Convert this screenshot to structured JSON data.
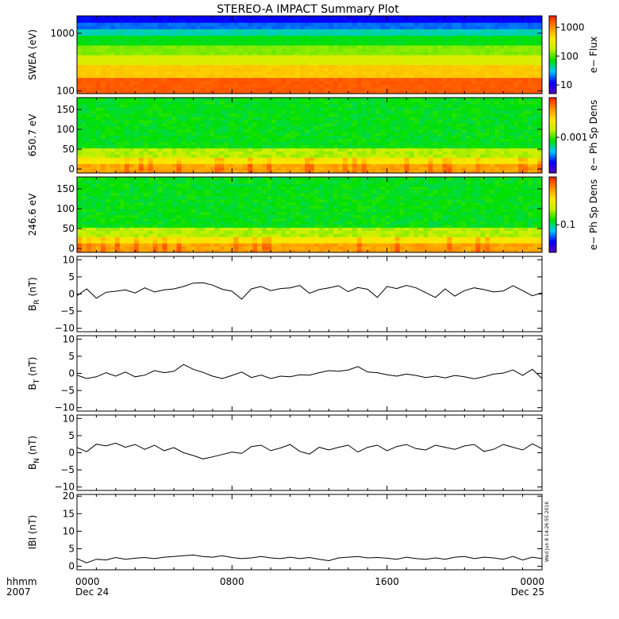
{
  "title": "STEREO-A IMPACT Summary Plot",
  "footer": {
    "hhmm_label": "hhmm",
    "year_label": "2007",
    "time_ticks": [
      "0000",
      "0800",
      "1600",
      "0000"
    ],
    "date_ticks": [
      "Dec 24",
      "",
      "",
      "Dec 25"
    ],
    "timestamp": "Wed Jun 8 14:26:55 2016"
  },
  "colors": {
    "line": "#000000",
    "colormap": [
      "#5a00b4",
      "#0000ff",
      "#00c8ff",
      "#00e000",
      "#c8f000",
      "#ffe600",
      "#ff8c00",
      "#ff1e00"
    ]
  },
  "chart_data": [
    {
      "type": "heatmap",
      "ylabel": "SWEA (eV)",
      "yscale": "log",
      "ylim": [
        90,
        2000
      ],
      "yticks": [
        {
          "v": 1000,
          "label": "1000"
        },
        {
          "v": 100,
          "label": "100"
        }
      ],
      "colorbar": {
        "label": "e− Flux",
        "scale": "log",
        "range": [
          5,
          2500
        ],
        "ticks": [
          {
            "v": 1000,
            "label": "1000"
          },
          {
            "v": 100,
            "label": "100"
          },
          {
            "v": 10,
            "label": "10"
          }
        ]
      },
      "profile": "energy"
    },
    {
      "type": "heatmap",
      "ylabel": "650.7 eV",
      "ylim": [
        -10,
        180
      ],
      "yticks": [
        {
          "v": 150,
          "label": "150"
        },
        {
          "v": 100,
          "label": "100"
        },
        {
          "v": 50,
          "label": "50"
        },
        {
          "v": 0,
          "label": "0"
        }
      ],
      "colorbar": {
        "label": "e− Ph Sp Dens",
        "scale": "log",
        "range": [
          0.0002,
          0.006
        ],
        "ticks": [
          {
            "v": 0.001,
            "label": "0.001"
          }
        ]
      },
      "profile": "pitch"
    },
    {
      "type": "heatmap",
      "ylabel": "246.6 eV",
      "ylim": [
        -10,
        180
      ],
      "yticks": [
        {
          "v": 150,
          "label": "150"
        },
        {
          "v": 100,
          "label": "100"
        },
        {
          "v": 50,
          "label": "50"
        },
        {
          "v": 0,
          "label": "0"
        }
      ],
      "colorbar": {
        "label": "e− Ph Sp Dens",
        "scale": "log",
        "range": [
          0.03,
          0.8
        ],
        "ticks": [
          {
            "v": 0.1,
            "label": "0.1"
          }
        ]
      },
      "profile": "pitch"
    },
    {
      "type": "line",
      "ylabel": "B",
      "ylabel_sub": "R",
      "ylabel_unit": "(nT)",
      "ylim": [
        -11,
        11
      ],
      "yticks": [
        {
          "v": 10,
          "label": "10"
        },
        {
          "v": 5,
          "label": "5"
        },
        {
          "v": 0,
          "label": "0"
        },
        {
          "v": -5,
          "label": "−5"
        },
        {
          "v": -10,
          "label": "−10"
        }
      ],
      "x": [
        0,
        0.5,
        1,
        1.5,
        2,
        2.5,
        3,
        3.5,
        4,
        4.5,
        5,
        5.5,
        6,
        6.5,
        7,
        7.5,
        8,
        8.5,
        9,
        9.5,
        10,
        10.5,
        11,
        11.5,
        12,
        12.5,
        13,
        13.5,
        14,
        14.5,
        15,
        15.5,
        16,
        16.5,
        17,
        17.5,
        18,
        18.5,
        19,
        19.5,
        20,
        20.5,
        21,
        21.5,
        22,
        22.5,
        23,
        23.5,
        24
      ],
      "values": [
        -0.5,
        1.5,
        -1.2,
        0.5,
        0.8,
        1.2,
        0.3,
        1.8,
        0.6,
        1.2,
        1.5,
        2.2,
        3.2,
        3.3,
        2.6,
        1.4,
        0.8,
        -1.5,
        1.5,
        2.2,
        1.0,
        1.6,
        1.8,
        2.5,
        0.2,
        1.3,
        1.8,
        2.4,
        0.7,
        1.9,
        1.4,
        -1.0,
        2.2,
        1.6,
        2.5,
        1.8,
        0.4,
        -1.0,
        1.5,
        -0.6,
        1.0,
        1.8,
        1.3,
        0.6,
        0.9,
        2.4,
        1.0,
        -0.5,
        0.4
      ]
    },
    {
      "type": "line",
      "ylabel": "B",
      "ylabel_sub": "T",
      "ylabel_unit": "(nT)",
      "ylim": [
        -11,
        11
      ],
      "yticks": [
        {
          "v": 10,
          "label": "10"
        },
        {
          "v": 5,
          "label": "5"
        },
        {
          "v": 0,
          "label": "0"
        },
        {
          "v": -5,
          "label": "−5"
        },
        {
          "v": -10,
          "label": "−10"
        }
      ],
      "x": [
        0,
        0.5,
        1,
        1.5,
        2,
        2.5,
        3,
        3.5,
        4,
        4.5,
        5,
        5.5,
        6,
        6.5,
        7,
        7.5,
        8,
        8.5,
        9,
        9.5,
        10,
        10.5,
        11,
        11.5,
        12,
        12.5,
        13,
        13.5,
        14,
        14.5,
        15,
        15.5,
        16,
        16.5,
        17,
        17.5,
        18,
        18.5,
        19,
        19.5,
        20,
        20.5,
        21,
        21.5,
        22,
        22.5,
        23,
        23.5,
        24
      ],
      "values": [
        -0.5,
        -1.5,
        -1.0,
        0.2,
        -0.8,
        0.4,
        -1.0,
        -0.5,
        0.8,
        0.2,
        0.6,
        2.6,
        1.2,
        0.3,
        -0.8,
        -1.5,
        -0.6,
        0.4,
        -1.2,
        -0.5,
        -1.5,
        -0.8,
        -1.0,
        -0.4,
        -0.5,
        0.2,
        0.8,
        0.6,
        1.0,
        2.0,
        0.4,
        0.2,
        -0.4,
        -0.8,
        -0.2,
        -0.6,
        -1.2,
        -0.8,
        -1.3,
        -0.6,
        -1.0,
        -1.6,
        -1.0,
        -0.2,
        0.1,
        1.0,
        -0.6,
        1.2,
        -1.5
      ]
    },
    {
      "type": "line",
      "ylabel": "B",
      "ylabel_sub": "N",
      "ylabel_unit": "(nT)",
      "ylim": [
        -11,
        11
      ],
      "yticks": [
        {
          "v": 10,
          "label": "10"
        },
        {
          "v": 5,
          "label": "5"
        },
        {
          "v": 0,
          "label": "0"
        },
        {
          "v": -5,
          "label": "−5"
        },
        {
          "v": -10,
          "label": "−10"
        }
      ],
      "x": [
        0,
        0.5,
        1,
        1.5,
        2,
        2.5,
        3,
        3.5,
        4,
        4.5,
        5,
        5.5,
        6,
        6.5,
        7,
        7.5,
        8,
        8.5,
        9,
        9.5,
        10,
        10.5,
        11,
        11.5,
        12,
        12.5,
        13,
        13.5,
        14,
        14.5,
        15,
        15.5,
        16,
        16.5,
        17,
        17.5,
        18,
        18.5,
        19,
        19.5,
        20,
        20.5,
        21,
        21.5,
        22,
        22.5,
        23,
        23.5,
        24
      ],
      "values": [
        1.5,
        0.3,
        2.5,
        2.0,
        2.8,
        1.6,
        2.4,
        1.0,
        2.2,
        0.6,
        1.5,
        0.0,
        -0.8,
        -1.8,
        -1.2,
        -0.5,
        0.2,
        -0.2,
        1.8,
        2.2,
        0.6,
        1.4,
        2.4,
        0.4,
        -0.4,
        1.6,
        0.8,
        1.6,
        2.2,
        0.2,
        1.6,
        2.2,
        0.6,
        1.8,
        2.4,
        1.2,
        0.8,
        2.2,
        1.6,
        1.0,
        2.0,
        2.4,
        0.4,
        1.0,
        2.4,
        1.6,
        0.8,
        2.6,
        1.2
      ]
    },
    {
      "type": "line",
      "ylabel": "IBI (nT)",
      "ylabel_sub": "",
      "ylabel_unit": "",
      "ylim": [
        -1,
        20.5
      ],
      "yticks": [
        {
          "v": 20,
          "label": "20"
        },
        {
          "v": 15,
          "label": "15"
        },
        {
          "v": 10,
          "label": "10"
        },
        {
          "v": 5,
          "label": "5"
        },
        {
          "v": 0,
          "label": "0"
        }
      ],
      "x": [
        0,
        0.5,
        1,
        1.5,
        2,
        2.5,
        3,
        3.5,
        4,
        4.5,
        5,
        5.5,
        6,
        6.5,
        7,
        7.5,
        8,
        8.5,
        9,
        9.5,
        10,
        10.5,
        11,
        11.5,
        12,
        12.5,
        13,
        13.5,
        14,
        14.5,
        15,
        15.5,
        16,
        16.5,
        17,
        17.5,
        18,
        18.5,
        19,
        19.5,
        20,
        20.5,
        21,
        21.5,
        22,
        22.5,
        23,
        23.5,
        24
      ],
      "values": [
        2.2,
        1.0,
        2.0,
        1.8,
        2.5,
        2.0,
        2.3,
        2.5,
        2.2,
        2.6,
        2.8,
        3.0,
        3.2,
        2.8,
        2.6,
        3.0,
        2.5,
        2.2,
        2.4,
        2.8,
        2.4,
        2.2,
        2.6,
        2.2,
        2.5,
        2.0,
        1.6,
        2.4,
        2.6,
        2.8,
        2.4,
        2.5,
        2.3,
        2.0,
        2.6,
        2.2,
        2.0,
        2.4,
        2.0,
        2.6,
        2.8,
        2.2,
        2.6,
        2.4,
        2.0,
        2.8,
        1.8,
        2.6,
        2.2
      ]
    }
  ]
}
